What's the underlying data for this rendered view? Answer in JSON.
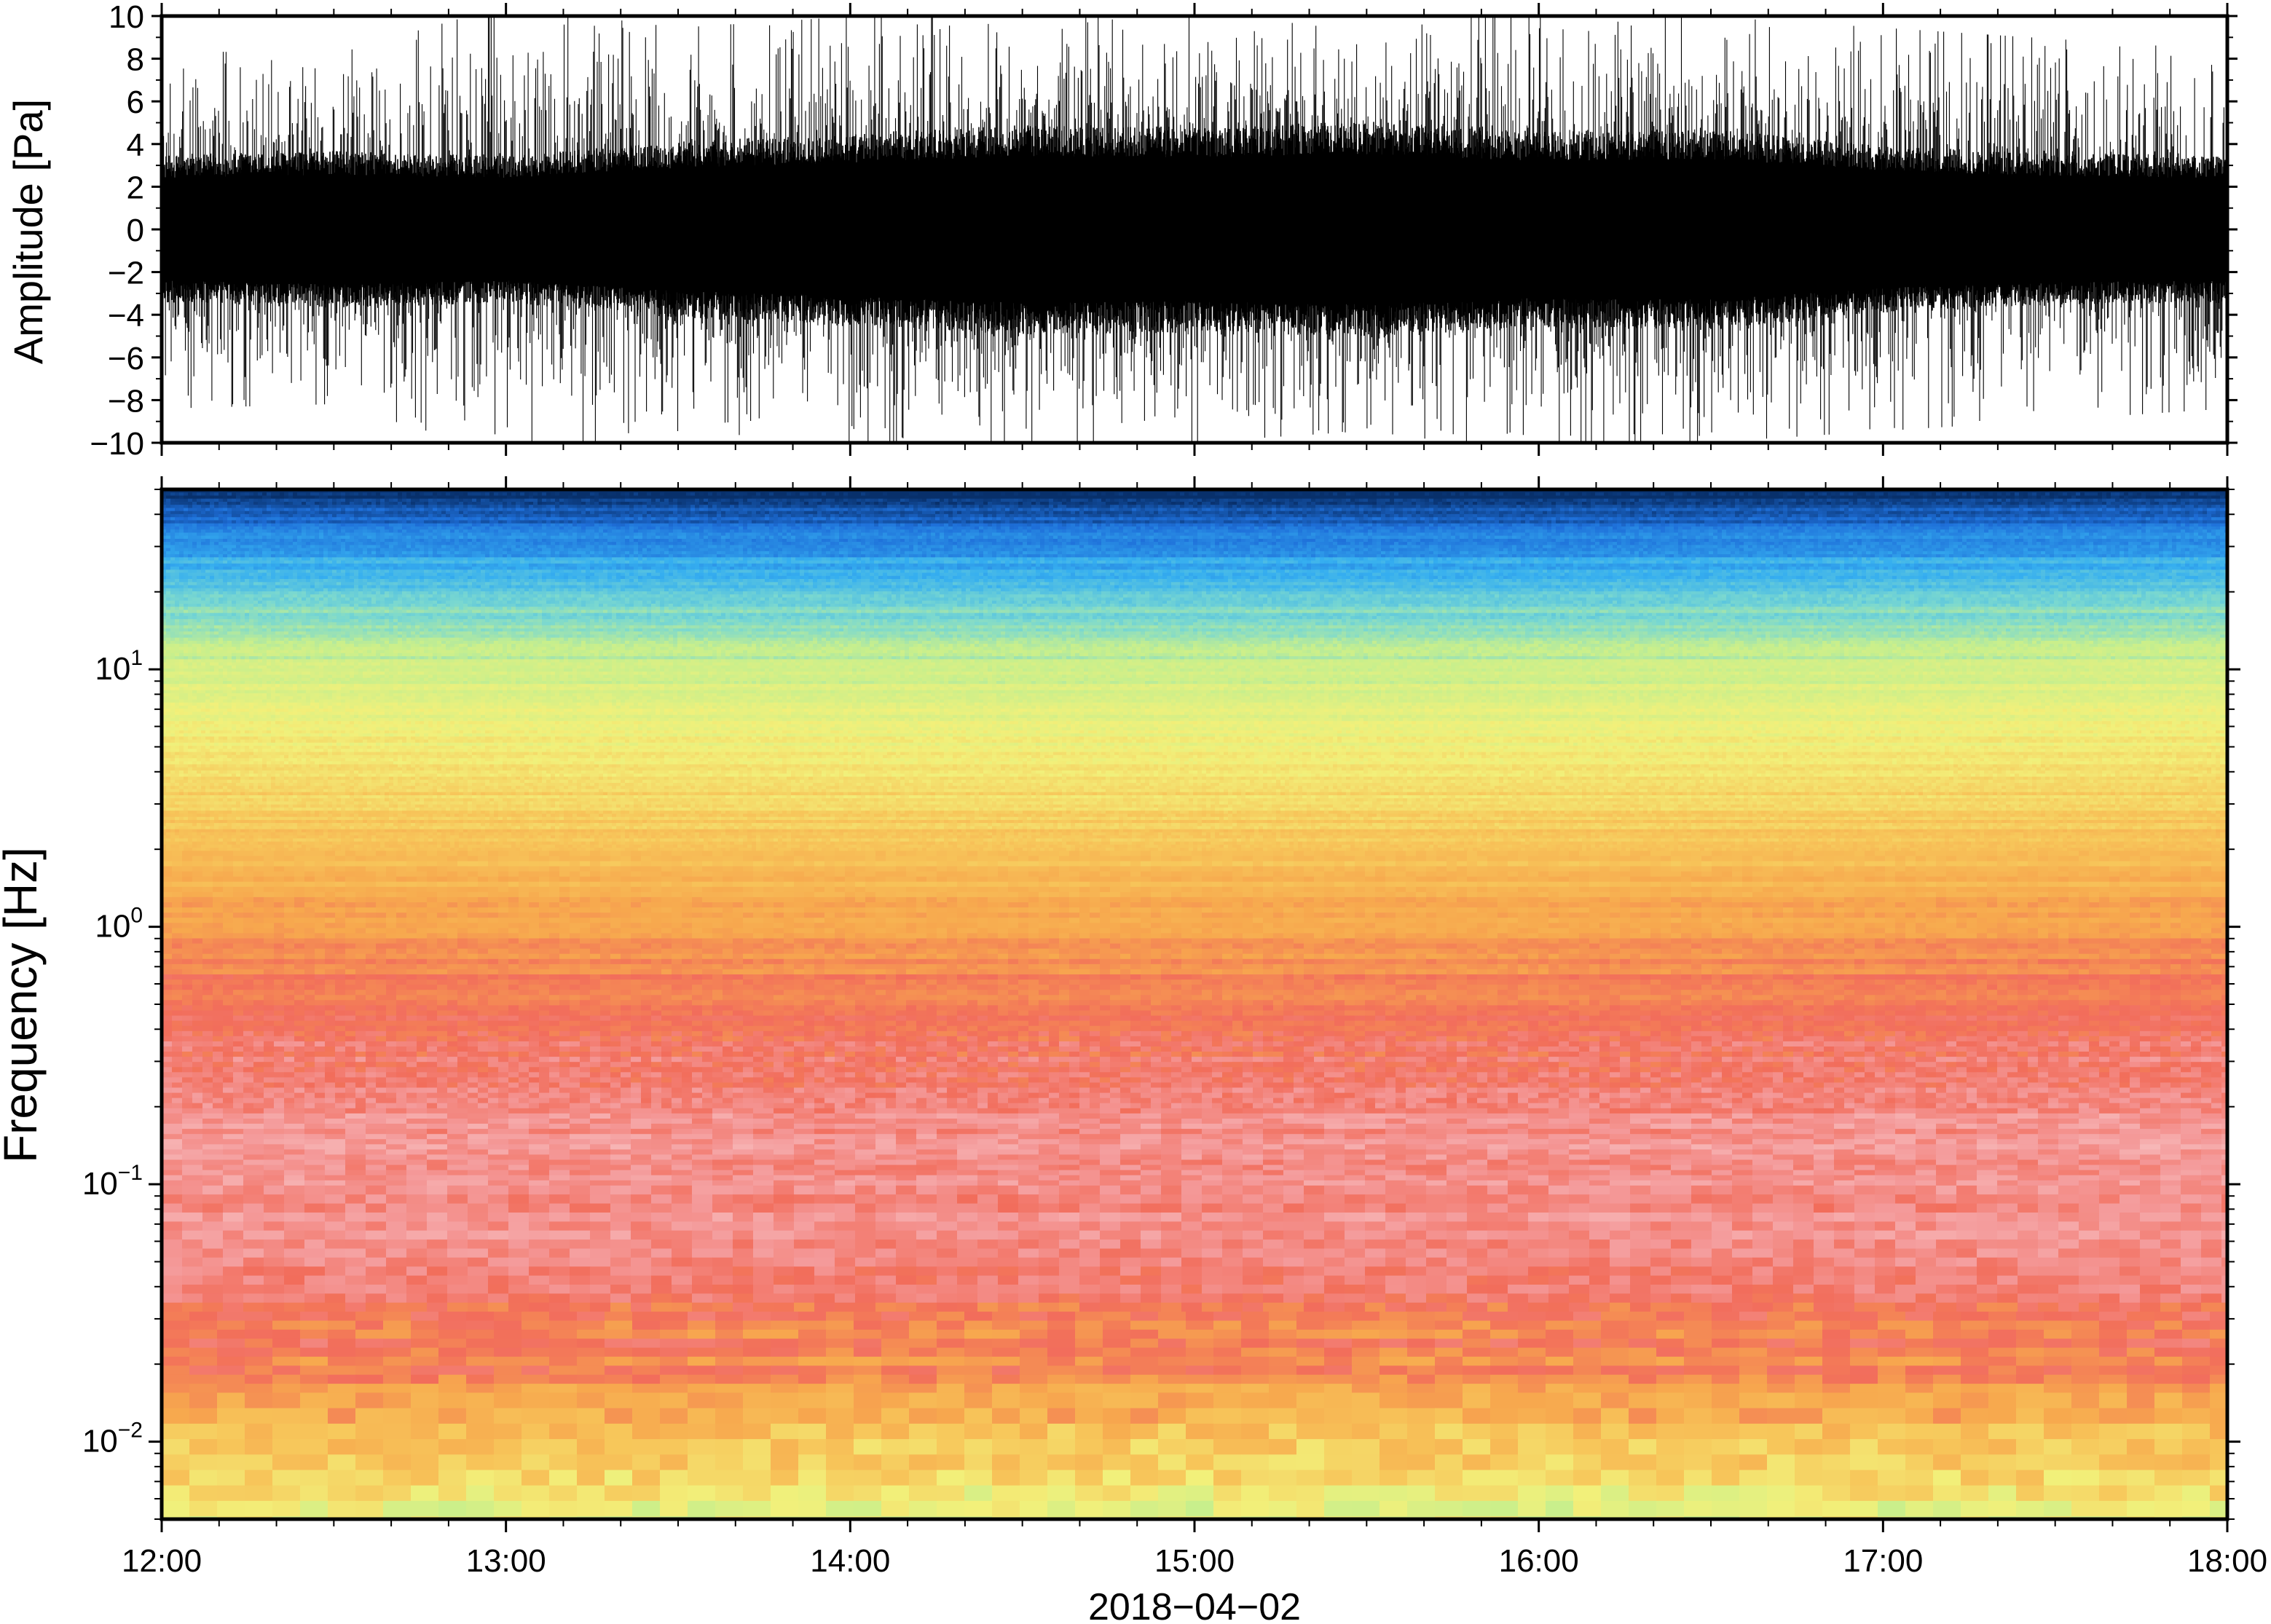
{
  "chart_data": [
    {
      "type": "line",
      "panel": "waveform",
      "ylabel": "Amplitude [Pa]",
      "ylim": [
        -10,
        10
      ],
      "yticks": [
        10,
        8,
        6,
        4,
        2,
        0,
        -2,
        -4,
        -6,
        -8,
        -10
      ],
      "ytick_labels": [
        "10",
        "8",
        "6",
        "4",
        "2",
        "0",
        "−2",
        "−4",
        "−6",
        "−8",
        "−10"
      ],
      "x_range": [
        "12:00",
        "18:00"
      ],
      "envelope": {
        "description_free": true,
        "hours": [
          12.0,
          12.5,
          13.0,
          13.5,
          14.0,
          14.5,
          15.0,
          15.5,
          16.0,
          16.5,
          17.0,
          17.5,
          18.0
        ],
        "core_amplitude": [
          3.0,
          3.2,
          3.0,
          3.6,
          3.9,
          4.3,
          4.2,
          4.4,
          4.0,
          4.1,
          3.4,
          3.1,
          3.0
        ],
        "peak_amplitude": [
          8.0,
          7.8,
          10.0,
          9.0,
          9.5,
          9.5,
          9.5,
          9.0,
          10.0,
          9.5,
          9.0,
          8.5,
          8.0
        ]
      },
      "line_color": "#000000"
    },
    {
      "type": "heatmap",
      "panel": "spectrogram",
      "ylabel": "Frequency [Hz]",
      "y_scale": "log",
      "ylim": [
        0.005,
        50
      ],
      "yticks": [
        {
          "value": 10,
          "base": "10",
          "exp": "1"
        },
        {
          "value": 1,
          "base": "10",
          "exp": "0"
        },
        {
          "value": 0.1,
          "base": "10",
          "exp": "−1"
        },
        {
          "value": 0.01,
          "base": "10",
          "exp": "−2"
        }
      ],
      "x_range": [
        "12:00",
        "18:00"
      ],
      "colormap": [
        "#08306b",
        "#1e6fd9",
        "#35aef0",
        "#7ad8d0",
        "#c8ef8c",
        "#f2f07a",
        "#f7c65a",
        "#f7a84e",
        "#f26d5b",
        "#f49a9a",
        "#f9c7c7"
      ],
      "band_profile": [
        {
          "log10_f_top": 1.7,
          "log10_f_bottom": 1.62,
          "color": "#0a2a8f"
        },
        {
          "log10_f_top": 1.62,
          "log10_f_bottom": 1.4,
          "color": "#2f9ae8"
        },
        {
          "log10_f_top": 1.4,
          "log10_f_bottom": 1.2,
          "color": "#6fd1dc"
        },
        {
          "log10_f_top": 1.2,
          "log10_f_bottom": 0.9,
          "color": "#d6ef88"
        },
        {
          "log10_f_top": 0.9,
          "log10_f_bottom": 0.5,
          "color": "#f5c860"
        },
        {
          "log10_f_top": 0.5,
          "log10_f_bottom": 0.1,
          "color": "#f7a34f"
        },
        {
          "log10_f_top": 0.1,
          "log10_f_bottom": -0.4,
          "color": "#f26a5a"
        },
        {
          "log10_f_top": -0.4,
          "log10_f_bottom": -1.2,
          "color": "#f5a1a1"
        },
        {
          "log10_f_top": -1.2,
          "log10_f_bottom": -1.75,
          "color": "#f06a68"
        },
        {
          "log10_f_top": -1.75,
          "log10_f_bottom": -2.3,
          "color": "#f5c15c"
        }
      ]
    }
  ],
  "xaxis": {
    "tick_labels": [
      "12:00",
      "13:00",
      "14:00",
      "15:00",
      "16:00",
      "17:00",
      "18:00"
    ],
    "tick_hours": [
      12,
      13,
      14,
      15,
      16,
      17,
      18
    ],
    "minor_per_hour": 6,
    "date_label": "2018−04−02"
  }
}
